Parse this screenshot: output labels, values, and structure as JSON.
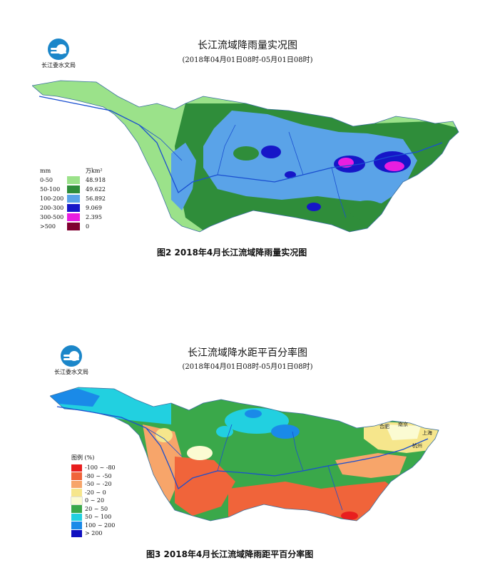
{
  "top_map": {
    "logo_org": "长江委水文局",
    "title": "长江流域降雨量实况图",
    "subtitle": "(2018年04月01日08时-05月01日08时)",
    "legend": {
      "unit_left": "mm",
      "unit_right": "万km²",
      "rows": [
        {
          "range": "0-50",
          "color": "#9be28a",
          "area": "48.918"
        },
        {
          "range": "50-100",
          "color": "#2f8d3a",
          "area": "49.622"
        },
        {
          "range": "100-200",
          "color": "#5aa3e8",
          "area": "56.892"
        },
        {
          "range": "200-300",
          "color": "#1616c8",
          "area": "9.069"
        },
        {
          "range": "300-500",
          "color": "#e81ee0",
          "area": "2.395"
        },
        {
          "range": ">500",
          "color": "#800030",
          "area": "0"
        }
      ]
    },
    "caption": "图2  2018年4月长江流域降雨量实况图"
  },
  "bottom_map": {
    "logo_org": "长江委水文局",
    "title": "长江流域降水距平百分率图",
    "subtitle": "(2018年04月01日08时-05月01日08时)",
    "places": {
      "hefei": "合肥",
      "nanjing": "南京",
      "shanghai": "上海",
      "hangzhou": "杭州"
    },
    "legend": {
      "header": "图例 (%)",
      "rows": [
        {
          "range": "-100 ~ -80",
          "color": "#e81e1e"
        },
        {
          "range": "-80 ~ -50",
          "color": "#f0643a"
        },
        {
          "range": "-50 ~ -20",
          "color": "#f7a56a"
        },
        {
          "range": "-20 ~ 0",
          "color": "#f6e68c"
        },
        {
          "range": "0 ~ 20",
          "color": "#fbfbd2"
        },
        {
          "range": "20 ~ 50",
          "color": "#3aa84a"
        },
        {
          "range": "50 ~ 100",
          "color": "#22d0e0"
        },
        {
          "range": "100 ~ 200",
          "color": "#1a8ae8"
        },
        {
          "range": "> 200",
          "color": "#1010c0"
        }
      ]
    },
    "caption": "图3  2018年4月长江流域降雨距平百分率图"
  }
}
